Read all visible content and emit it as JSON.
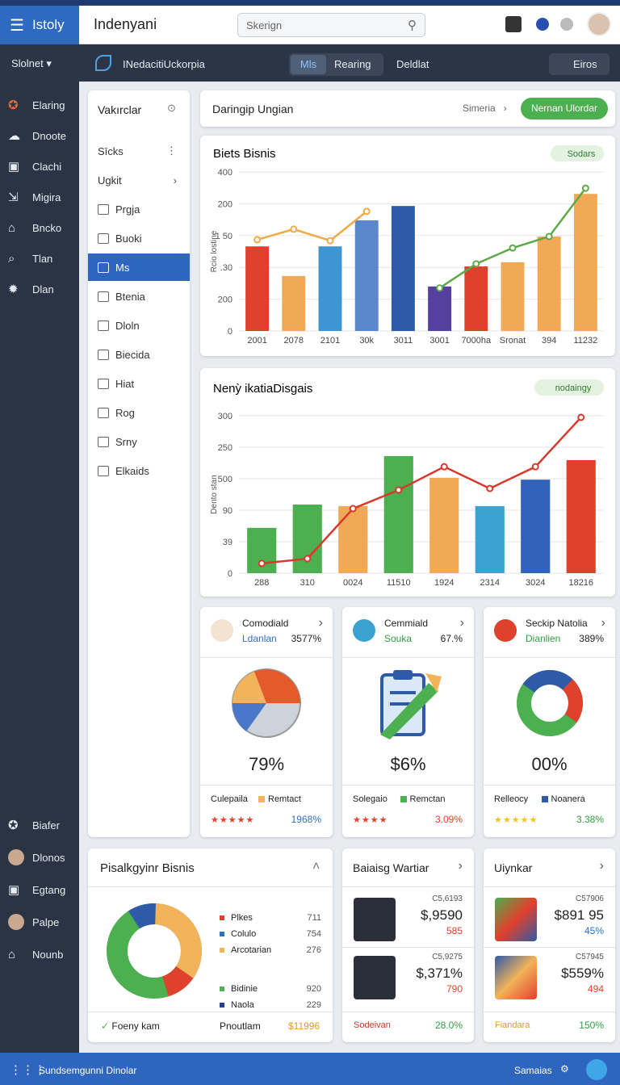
{
  "topbar": {
    "brand": "Istoly",
    "title": "Indenyani",
    "search": "Skerign"
  },
  "subbar": {
    "dropdown": "Slolnet",
    "logo": "INedacitiUckorpia",
    "tabs": [
      "Mls",
      "Rearing",
      "Deldlat"
    ],
    "button": "Eiros"
  },
  "sidebar": {
    "top": [
      "Elaring",
      "Dnoote",
      "Clachi",
      "Migira",
      "Bncko",
      "Tlan",
      "Dlan"
    ],
    "bottom": [
      "Biafer",
      "Dlonos",
      "Egtang",
      "Palpe",
      "Nounb"
    ]
  },
  "panel": {
    "title": "Vakırclar",
    "items": [
      "Sīcks",
      "Ugkit",
      "Prgja",
      "Buoki",
      "Ms",
      "Btenia",
      "Dloln",
      "Biecida",
      "Hiat",
      "Rog",
      "Srny",
      "Elkaids"
    ]
  },
  "header": {
    "title": "Daringip Ungian",
    "link": "Simeria",
    "button": "Nernan Ulordar"
  },
  "charts": [
    {
      "title": "Biets Bisnis",
      "badge": "Sodars",
      "ylabel": "Rcio lostine",
      "ylim": [
        0,
        500
      ],
      "yticks": [
        0,
        {
          "value": 100,
          "label": "200"
        },
        {
          "value": 200,
          "label": ".30"
        },
        {
          "value": 300,
          "label": "1 50"
        },
        {
          "value": 400,
          "label": "200"
        },
        {
          "value": 500,
          "label": "400"
        }
      ],
      "categories": [
        "2001",
        "2078",
        "2101",
        "30k",
        "3011",
        "3001",
        "7000ha",
        "Sronat",
        "394",
        "11232"
      ],
      "bars": {
        "values": [
          266,
          173,
          266,
          348,
          393,
          140,
          203,
          216,
          297,
          431
        ],
        "colors": [
          "#e0412c",
          "#f2a957",
          "#3f95d1",
          "#5a86cc",
          "#2f5aa8",
          "#5540a0",
          "#e0412c",
          "#f2a957",
          "#f2a957",
          "#f2a957"
        ]
      },
      "lines": [
        {
          "color": "#f0aa45",
          "values": [
            287,
            320,
            284,
            376,
            null,
            null,
            null,
            null,
            null,
            null
          ]
        },
        {
          "color": "#5ea84a",
          "values": [
            null,
            null,
            null,
            null,
            null,
            135,
            211,
            261,
            297,
            449
          ]
        }
      ]
    },
    {
      "title": "Nenỳ ikatiaDisgais",
      "badge": "nodaingy",
      "ylabel": "Dento stan",
      "ylim": [
        0,
        500
      ],
      "yticks": [
        0,
        {
          "value": 100,
          "label": "39"
        },
        {
          "value": 200,
          "label": "90"
        },
        {
          "value": 300,
          "label": "500"
        },
        {
          "value": 400,
          "label": "250"
        },
        {
          "value": 500,
          "label": "300"
        }
      ],
      "categories": [
        "288",
        "310",
        "0024",
        "11510",
        "1924",
        "2314",
        "3024",
        "18216"
      ],
      "bars": {
        "values": [
          144,
          218,
          213,
          372,
          303,
          213,
          297,
          359
        ],
        "colors": [
          "#4caf50",
          "#4caf50",
          "#f2a957",
          "#4caf50",
          "#f2a957",
          "#3aa3d1",
          "#2f62b8",
          "#e0412c"
        ]
      },
      "lines": [
        {
          "color": "#d9392b",
          "values": [
            31,
            46,
            205,
            264,
            338,
            269,
            338,
            495
          ]
        }
      ]
    }
  ],
  "stats": [
    {
      "title": "Comodiald",
      "subtitle": "Ldanlan",
      "pct": "3577%",
      "big": "79%",
      "legend": [
        "Culepaila",
        "Remtact"
      ],
      "stars": "★★★★★",
      "value": "1968%"
    },
    {
      "title": "Cemmiald",
      "subtitle": "Souka",
      "pct": "67.%",
      "big": "$6%",
      "legend": [
        "Solegaio",
        "Remctan"
      ],
      "stars": "★★★★",
      "value": "3.09%"
    },
    {
      "title": "Seckip Natolia",
      "subtitle": "Dianlien",
      "pct": "389%",
      "big": "00%",
      "legend": [
        "Relleocy",
        "Noanera"
      ],
      "stars": "★★★★★",
      "value": "3.38%"
    }
  ],
  "donut_card": {
    "title": "Pisalkgyinr Bisnis",
    "legend": [
      {
        "name": "Plkes",
        "value": "711"
      },
      {
        "name": "Colulo",
        "value": "754"
      },
      {
        "name": "Arcotarian",
        "value": "276"
      },
      {
        "name": "Bidinie",
        "value": "920"
      },
      {
        "name": "Naola",
        "value": "229"
      }
    ],
    "footer": [
      "Foeny kam",
      "Pnoutlam",
      "$11996"
    ]
  },
  "list_cards": [
    {
      "title": "Baiaisg Wartiar",
      "rows": [
        {
          "code": "C5,6193",
          "amount": "$,9590",
          "sub": "585"
        },
        {
          "code": "C5,9275",
          "amount": "$,371%",
          "sub": "790"
        }
      ],
      "footer": [
        "Sodeivan",
        "28.0%"
      ]
    },
    {
      "title": "Uiynkar",
      "rows": [
        {
          "code": "C57906",
          "amount": "$891 95",
          "sub": "45%"
        },
        {
          "code": "C57945",
          "amount": "$559%",
          "sub": "494"
        }
      ],
      "footer": [
        "Fiandara",
        "150%"
      ]
    }
  ],
  "bottombar": {
    "left": "Sundsemgunni Dinolar",
    "right": "Samaias"
  }
}
